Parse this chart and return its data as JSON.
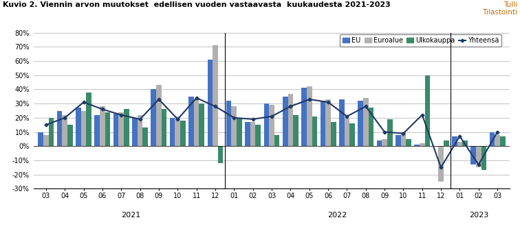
{
  "title": "Kuvio 2. Viennin arvon muutokset  edellisen vuoden vastaavasta  kuukaudesta 2021-2023",
  "subtitle_right": "Tulli\nTilastointi",
  "labels": [
    "03",
    "04",
    "05",
    "06",
    "07",
    "08",
    "09",
    "10",
    "11",
    "12",
    "01",
    "02",
    "03",
    "04",
    "05",
    "06",
    "07",
    "08",
    "09",
    "10",
    "11",
    "12",
    "01",
    "02",
    "03"
  ],
  "EU": [
    10,
    25,
    27,
    22,
    23,
    20,
    40,
    20,
    35,
    61,
    32,
    17,
    30,
    35,
    41,
    32,
    33,
    32,
    4,
    8,
    1,
    0,
    7,
    -13,
    10
  ],
  "Euroalue": [
    8,
    22,
    25,
    28,
    24,
    22,
    43,
    21,
    33,
    71,
    28,
    17,
    29,
    37,
    42,
    33,
    20,
    34,
    5,
    10,
    2,
    -25,
    3,
    -15,
    8
  ],
  "Ulkokauppa": [
    20,
    15,
    38,
    24,
    26,
    13,
    26,
    18,
    30,
    -12,
    20,
    15,
    8,
    22,
    21,
    17,
    16,
    27,
    19,
    5,
    50,
    4,
    4,
    -17,
    7
  ],
  "Yhteensa": [
    15,
    20,
    31,
    26,
    22,
    19,
    33,
    19,
    34,
    28,
    20,
    19,
    21,
    28,
    33,
    31,
    21,
    28,
    10,
    9,
    22,
    -15,
    7,
    -13,
    10
  ],
  "colors": {
    "EU": "#4472C4",
    "Euroalue": "#B0B0B0",
    "Ulkokauppa": "#3A8A6A",
    "Yhteensa": "#1F3864"
  },
  "ylim": [
    -30,
    80
  ],
  "yticks": [
    -30,
    -20,
    -10,
    0,
    10,
    20,
    30,
    40,
    50,
    60,
    70,
    80
  ],
  "dividers": [
    9.5,
    21.5
  ],
  "year_centers": [
    4.5,
    15.5,
    23.0
  ],
  "year_texts": [
    "2021",
    "2022",
    "2023"
  ],
  "background_color": "#FFFFFF"
}
